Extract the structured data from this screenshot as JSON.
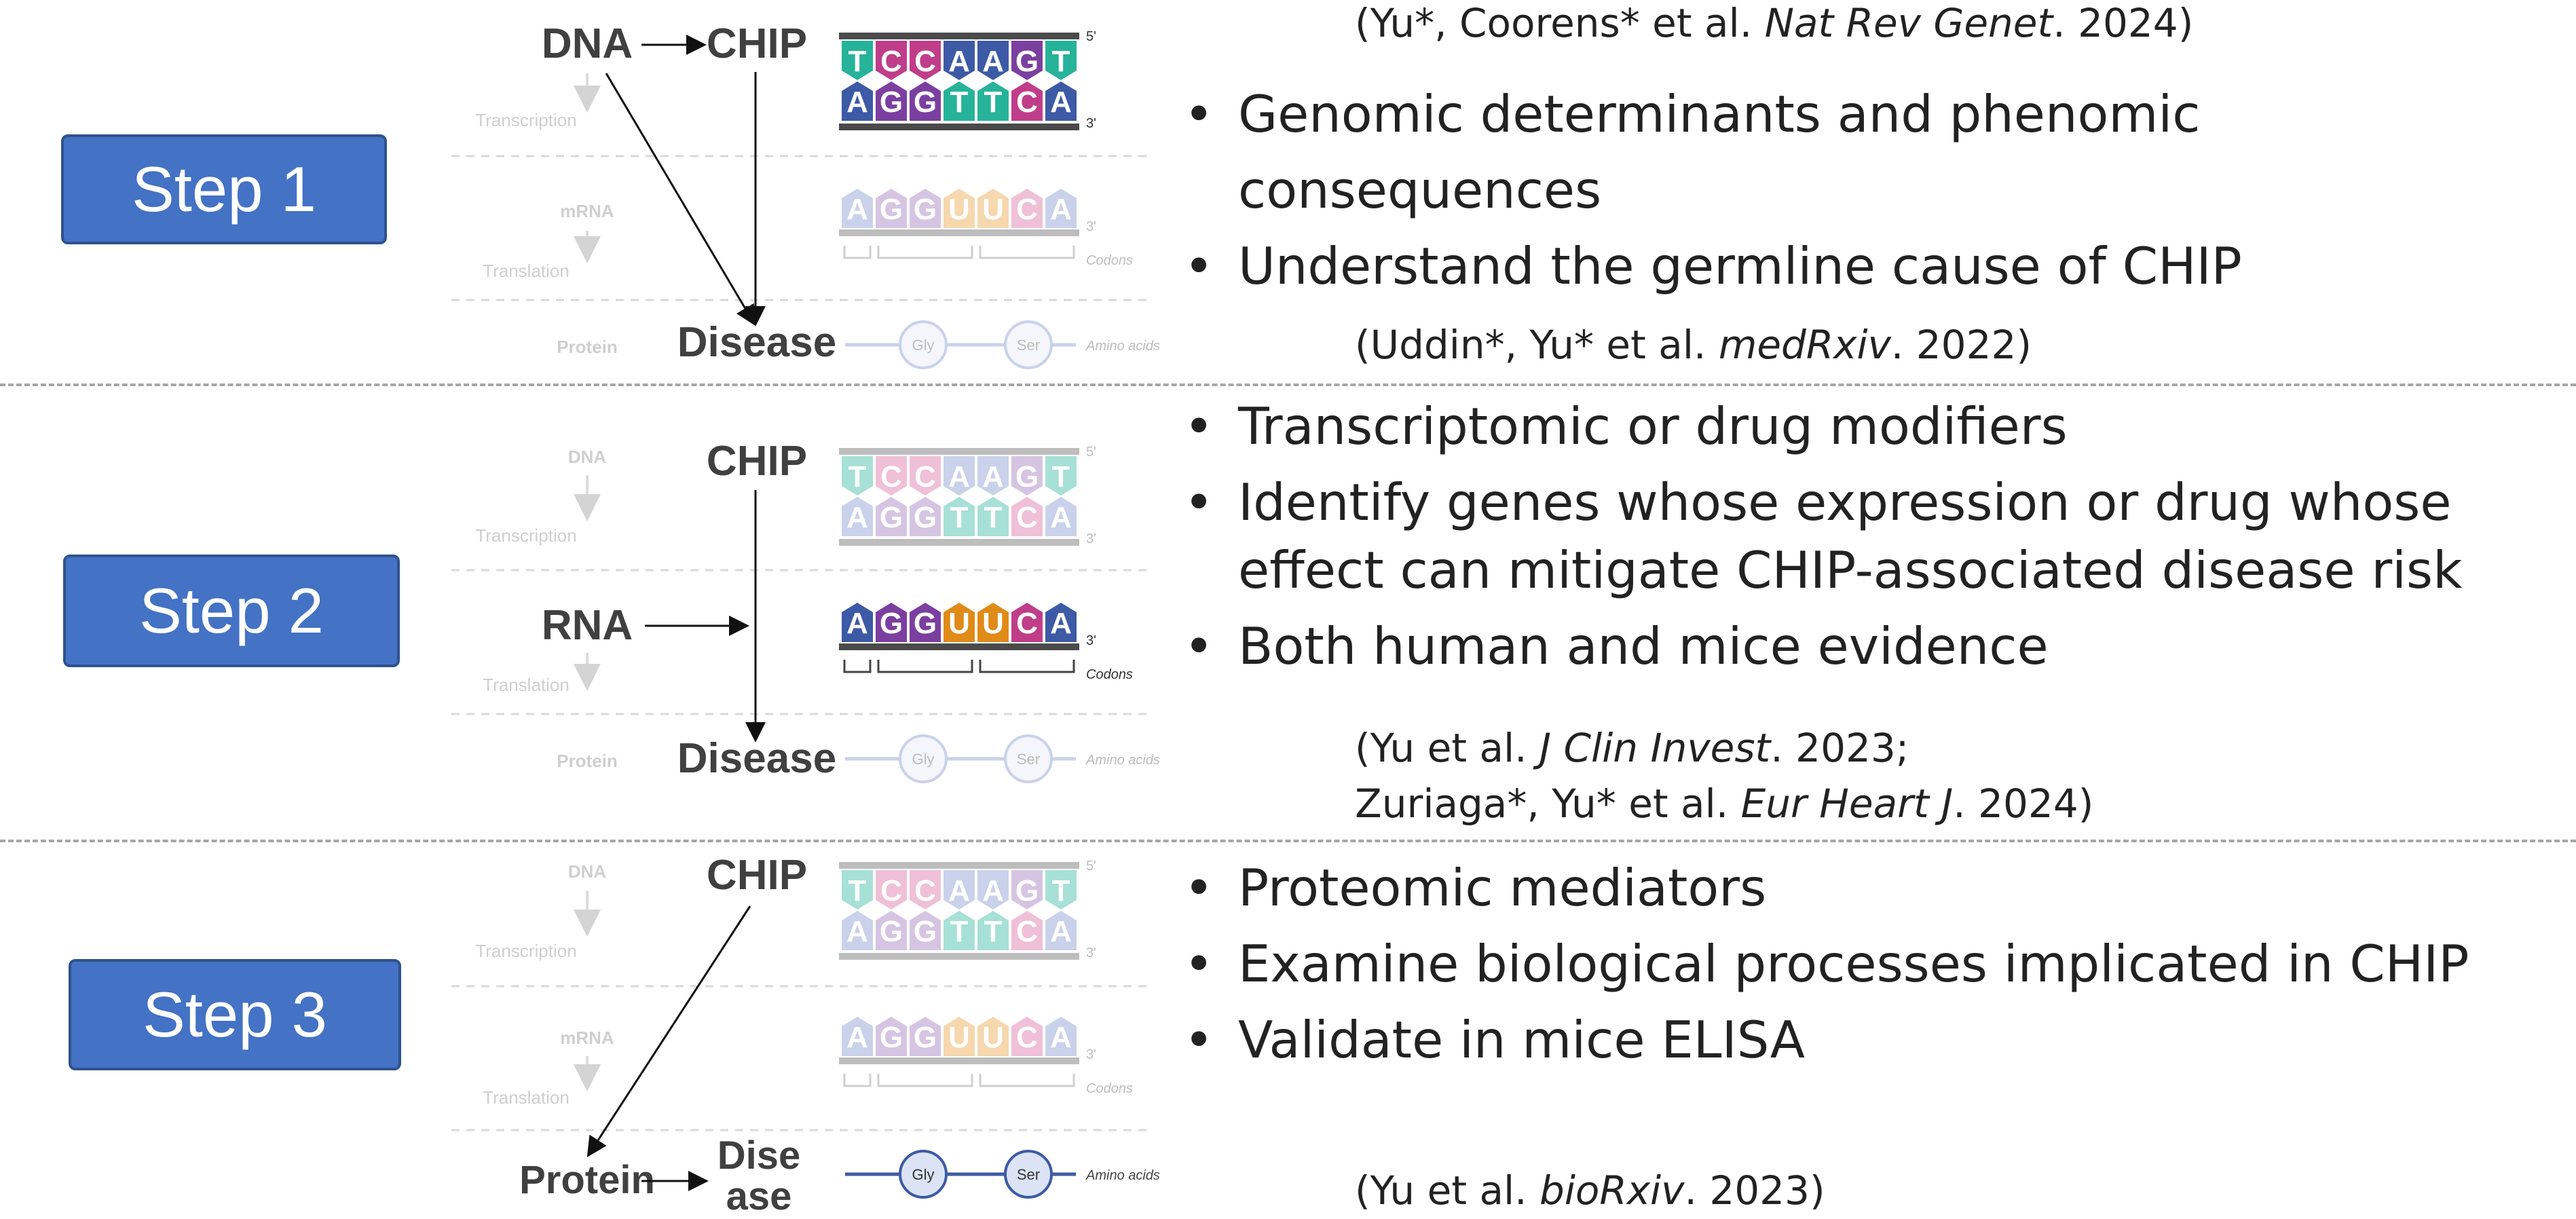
{
  "steps": [
    {
      "label": "Step 1",
      "diagram": {
        "dna": "DNA",
        "chip": "CHIP",
        "disease": "Disease",
        "transcription": "Transcription",
        "mrna": "mRNA",
        "translation": "Translation",
        "protein": "Protein"
      },
      "bullets": [
        "Genomic determinants and phenomic consequences",
        "Understand the germline cause of CHIP"
      ],
      "citation_top": {
        "a": "(Yu*, Coorens* et al. ",
        "journal": "Nat Rev Genet",
        "b": ". 2024)"
      },
      "citation_bottom": {
        "a": "(Uddin*, Yu* et al. ",
        "journal": "medRxiv",
        "b": ". 2022)"
      }
    },
    {
      "label": "Step 2",
      "diagram": {
        "dna": "DNA",
        "chip": "CHIP",
        "rna": "RNA",
        "disease": "Disease",
        "transcription": "Transcription",
        "translation": "Translation",
        "protein": "Protein"
      },
      "bullets": [
        "Transcriptomic or drug modifiers",
        "Identify genes whose expression or drug whose effect can mitigate CHIP-associated disease risk",
        "Both human and mice evidence"
      ],
      "citation_line1": {
        "a": "(Yu et al. ",
        "journal": "J Clin Invest",
        "b": ". 2023;"
      },
      "citation_line2": {
        "a": "Zuriaga*, Yu* et al. ",
        "journal": "Eur Heart J",
        "b": ". 2024)"
      }
    },
    {
      "label": "Step 3",
      "diagram": {
        "dna": "DNA",
        "chip": "CHIP",
        "protein": "Protein",
        "disease_line1": "Dise",
        "disease_line2": "ase",
        "transcription": "Transcription",
        "mrna": "mRNA",
        "translation": "Translation"
      },
      "bullets": [
        "Proteomic mediators",
        "Examine biological processes implicated in CHIP",
        "Validate in mice ELISA"
      ],
      "citation_bottom": {
        "a": "(Yu et al. ",
        "journal": "bioRxiv",
        "b": ". 2023)"
      }
    }
  ],
  "genetics": {
    "dna_top": [
      "T",
      "C",
      "C",
      "A",
      "A",
      "G",
      "T"
    ],
    "dna_bottom": [
      "A",
      "G",
      "G",
      "T",
      "T",
      "C",
      "A"
    ],
    "mrna": [
      "A",
      "G",
      "G",
      "U",
      "U",
      "C",
      "A"
    ],
    "amino_acids": [
      "Gly",
      "Ser"
    ],
    "end_5": "5'",
    "end_3": "3'",
    "codons_label": "Codons",
    "amino_acids_label": "Amino acids"
  },
  "colors": {
    "step_fill": "#4472c4",
    "step_border": "#2f528f",
    "T": "#26b39a",
    "C": "#c03d8a",
    "A": "#3d5aa6",
    "G": "#7b3fa0",
    "U": "#e08a17",
    "faded_T": "#a7e0d6",
    "faded_C": "#efc0d8",
    "faded_A": "#c9d2ea",
    "faded_G": "#d6c5e2",
    "faded_U": "#f6d7ae"
  }
}
